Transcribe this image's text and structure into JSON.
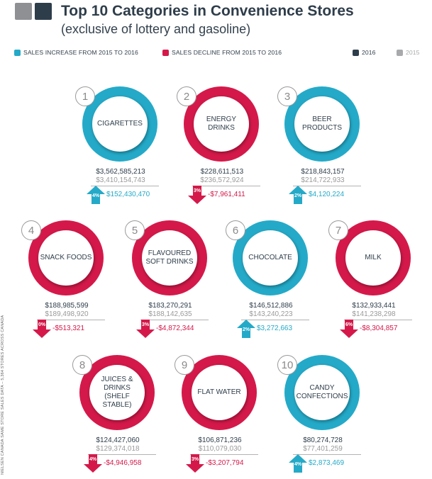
{
  "header": {
    "title": "Top 10 Categories in Convenience Stores",
    "subtitle": "(exclusive of lottery and gasoline)"
  },
  "legend": {
    "increase": "SALES INCREASE FROM 2015 TO 2016",
    "decline": "SALES DECLINE FROM 2015 TO 2016",
    "y2016": "2016",
    "y2015": "2015"
  },
  "colors": {
    "increase": "#24aac8",
    "decline": "#d4194a",
    "y2016": "#2e3d4a",
    "y2015": "#8f9093"
  },
  "source_note": "NIELSEN CANADA SAME STORE SALES DATA – 5,364 STORES ACROSS CANADA",
  "categories": [
    {
      "rank": "1",
      "name": "CIGARETTES",
      "sales_2016": "$3,562,585,213",
      "sales_2015": "$3,410,154,743",
      "pct": "4%",
      "change": "$152,430,470",
      "trend": "up"
    },
    {
      "rank": "2",
      "name": "ENERGY DRINKS",
      "sales_2016": "$228,611,513",
      "sales_2015": "$236,572,924",
      "pct": "3%",
      "change": "-$7,961,411",
      "trend": "down"
    },
    {
      "rank": "3",
      "name": "BEER PRODUCTS",
      "sales_2016": "$218,843,157",
      "sales_2015": "$214,722,933",
      "pct": "2%",
      "change": "$4,120,224",
      "trend": "up"
    },
    {
      "rank": "4",
      "name": "SNACK FOODS",
      "sales_2016": "$188,985,599",
      "sales_2015": "$189,498,920",
      "pct": "0%",
      "change": "-$513,321",
      "trend": "down"
    },
    {
      "rank": "5",
      "name": "FLAVOURED SOFT DRINKS",
      "sales_2016": "$183,270,291",
      "sales_2015": "$188,142,635",
      "pct": "3%",
      "change": "-$4,872,344",
      "trend": "down"
    },
    {
      "rank": "6",
      "name": "CHOCOLATE",
      "sales_2016": "$146,512,886",
      "sales_2015": "$143,240,223",
      "pct": "2%",
      "change": "$3,272,663",
      "trend": "up"
    },
    {
      "rank": "7",
      "name": "MILK",
      "sales_2016": "$132,933,441",
      "sales_2015": "$141,238,298",
      "pct": "6%",
      "change": "-$8,304,857",
      "trend": "down"
    },
    {
      "rank": "8",
      "name": "JUICES & DRINKS (SHELF STABLE)",
      "sales_2016": "$124,427,060",
      "sales_2015": "$129,374,018",
      "pct": "4%",
      "change": "-$4,946,958",
      "trend": "down"
    },
    {
      "rank": "9",
      "name": "FLAT WATER",
      "sales_2016": "$106,871,236",
      "sales_2015": "$110,079,030",
      "pct": "3%",
      "change": "-$3,207,794",
      "trend": "down"
    },
    {
      "rank": "10",
      "name": "CANDY CONFECTIONS",
      "sales_2016": "$80,274,728",
      "sales_2015": "$77,401,259",
      "pct": "4%",
      "change": "$2,873,469",
      "trend": "up"
    }
  ]
}
